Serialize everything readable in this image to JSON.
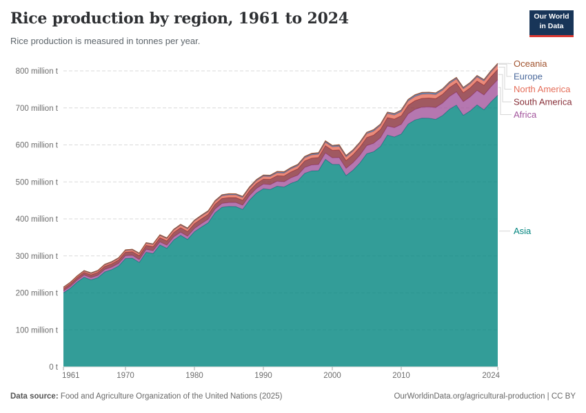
{
  "header": {
    "title": "Rice production by region, 1961 to 2024",
    "subtitle": "Rice production is measured in tonnes per year.",
    "logo_line1": "Our World",
    "logo_line2": "in Data",
    "logo_bg": "#183558",
    "logo_accent": "#dd3a33"
  },
  "footer": {
    "data_source_label": "Data source:",
    "data_source_text": " Food and Agriculture Organization of the United Nations (2025)",
    "right_text": "OurWorldinData.org/agricultural-production | CC BY"
  },
  "chart_data": {
    "type": "area",
    "stacked": true,
    "title": "Rice production by region, 1961 to 2024",
    "subtitle": "Rice production is measured in tonnes per year.",
    "unit": "million tonnes",
    "legend_position": "right",
    "grid": true,
    "ylim": [
      0,
      800
    ],
    "x_ticks": [
      1961,
      1970,
      1980,
      1990,
      2000,
      2010,
      2024
    ],
    "y_ticks": [
      {
        "value": 0,
        "label": "0 t"
      },
      {
        "value": 100,
        "label": "100 million t"
      },
      {
        "value": 200,
        "label": "200 million t"
      },
      {
        "value": 300,
        "label": "300 million t"
      },
      {
        "value": 400,
        "label": "400 million t"
      },
      {
        "value": 500,
        "label": "500 million t"
      },
      {
        "value": 600,
        "label": "600 million t"
      },
      {
        "value": 700,
        "label": "700 million t"
      },
      {
        "value": 800,
        "label": "800 million t"
      }
    ],
    "x": [
      1961,
      1962,
      1963,
      1964,
      1965,
      1966,
      1967,
      1968,
      1969,
      1970,
      1971,
      1972,
      1973,
      1974,
      1975,
      1976,
      1977,
      1978,
      1979,
      1980,
      1981,
      1982,
      1983,
      1984,
      1985,
      1986,
      1987,
      1988,
      1989,
      1990,
      1991,
      1992,
      1993,
      1994,
      1995,
      1996,
      1997,
      1998,
      1999,
      2000,
      2001,
      2002,
      2003,
      2004,
      2005,
      2006,
      2007,
      2008,
      2009,
      2010,
      2011,
      2012,
      2013,
      2014,
      2015,
      2016,
      2017,
      2018,
      2019,
      2020,
      2021,
      2022,
      2023,
      2024
    ],
    "series": [
      {
        "id": "asia",
        "label": "Asia",
        "color": "#00847E",
        "values": [
          200.1,
          212.4,
          229.2,
          242.4,
          235.1,
          241.1,
          256.7,
          262.8,
          272.6,
          293.1,
          294.0,
          282.5,
          310.0,
          306.2,
          329.6,
          320.6,
          343.1,
          355.7,
          344.6,
          365.4,
          377.9,
          389.6,
          416.6,
          431.7,
          433.7,
          433.3,
          425.7,
          451.0,
          469.9,
          481.5,
          479.6,
          488.4,
          486.1,
          496.2,
          503.0,
          523.3,
          529.8,
          530.4,
          561.1,
          547.5,
          547.2,
          517.3,
          531.7,
          551.1,
          576.2,
          581.6,
          596.0,
          626.6,
          621.4,
          629.4,
          656.4,
          667.6,
          672.3,
          672.0,
          669.1,
          679.7,
          696.5,
          707.5,
          679.8,
          691.9,
          708.1,
          694.9,
          715.9,
          734.1
        ]
      },
      {
        "id": "africa",
        "label": "Africa",
        "color": "#A2559C",
        "values": [
          4.9,
          5.2,
          5.4,
          5.7,
          6.0,
          6.2,
          6.5,
          6.8,
          7.0,
          7.3,
          7.4,
          7.6,
          7.7,
          7.8,
          8.0,
          8.1,
          8.2,
          8.3,
          8.5,
          8.6,
          9.0,
          9.4,
          9.8,
          10.2,
          10.6,
          11.0,
          11.4,
          11.8,
          12.2,
          12.6,
          13.1,
          13.6,
          14.1,
          14.6,
          15.1,
          15.6,
          16.0,
          16.5,
          17.0,
          17.5,
          18.4,
          19.2,
          20.1,
          20.9,
          21.8,
          22.6,
          23.5,
          24.3,
          25.2,
          26.0,
          27.2,
          28.4,
          29.6,
          30.8,
          32.0,
          33.2,
          34.4,
          35.6,
          36.8,
          38.0,
          39.0,
          40.0,
          41.0,
          42.0
        ]
      },
      {
        "id": "south_america",
        "label": "South America",
        "color": "#883039",
        "values": [
          6.1,
          6.5,
          6.9,
          7.3,
          7.7,
          8.2,
          8.6,
          9.0,
          9.4,
          9.8,
          10.1,
          10.5,
          10.8,
          11.1,
          11.5,
          11.8,
          12.1,
          12.4,
          12.8,
          13.1,
          13.1,
          13.2,
          13.2,
          13.3,
          13.3,
          13.3,
          13.4,
          13.4,
          13.5,
          13.5,
          14.2,
          14.9,
          15.6,
          16.3,
          17.1,
          17.8,
          18.5,
          19.2,
          19.9,
          20.6,
          20.9,
          21.2,
          21.5,
          21.8,
          22.1,
          22.3,
          22.6,
          22.9,
          23.2,
          23.5,
          23.6,
          23.7,
          23.8,
          23.9,
          24.0,
          24.1,
          24.2,
          24.3,
          24.4,
          24.5,
          25.4,
          26.2,
          27.1,
          28.0
        ]
      },
      {
        "id": "north_america",
        "label": "North America",
        "color": "#E56E5A",
        "values": [
          2.5,
          2.7,
          2.8,
          3.0,
          3.2,
          3.3,
          3.5,
          3.7,
          3.8,
          4.0,
          4.3,
          4.6,
          4.9,
          5.2,
          5.5,
          5.7,
          6.0,
          6.3,
          6.6,
          6.9,
          6.9,
          6.9,
          7.0,
          7.0,
          7.0,
          7.0,
          7.0,
          7.0,
          7.1,
          7.1,
          7.3,
          7.4,
          7.6,
          7.8,
          8.0,
          8.1,
          8.3,
          8.5,
          8.6,
          8.8,
          9.0,
          9.2,
          9.5,
          9.7,
          9.9,
          10.1,
          10.3,
          10.6,
          10.8,
          11.0,
          10.9,
          10.8,
          10.8,
          10.7,
          10.6,
          10.5,
          10.4,
          10.4,
          10.3,
          10.2,
          10.7,
          11.1,
          11.6,
          12.0
        ]
      },
      {
        "id": "europe",
        "label": "Europe",
        "color": "#4C6A9C",
        "values": [
          1.8,
          1.8,
          1.8,
          1.8,
          1.9,
          1.9,
          1.9,
          1.9,
          1.9,
          1.9,
          1.9,
          2.0,
          2.0,
          2.0,
          2.1,
          2.1,
          2.1,
          2.1,
          2.2,
          2.2,
          2.3,
          2.3,
          2.4,
          2.5,
          2.6,
          2.6,
          2.7,
          2.8,
          2.8,
          2.9,
          2.9,
          3.0,
          3.0,
          3.0,
          3.1,
          3.1,
          3.1,
          3.1,
          3.2,
          3.2,
          3.3,
          3.4,
          3.5,
          3.6,
          3.8,
          3.9,
          4.0,
          4.1,
          4.2,
          4.3,
          4.3,
          4.2,
          4.2,
          4.2,
          4.2,
          4.1,
          4.1,
          4.1,
          4.0,
          4.0,
          4.0,
          3.9,
          3.9,
          3.8
        ]
      },
      {
        "id": "oceania",
        "label": "Oceania",
        "color": "#A0522D",
        "values": [
          0.2,
          0.2,
          0.2,
          0.2,
          0.2,
          0.2,
          0.3,
          0.3,
          0.3,
          0.3,
          0.3,
          0.3,
          0.4,
          0.4,
          0.5,
          0.5,
          0.6,
          0.6,
          0.7,
          0.7,
          0.7,
          0.7,
          0.6,
          0.7,
          0.8,
          0.7,
          0.8,
          0.8,
          0.9,
          1.0,
          1.0,
          1.1,
          1.2,
          1.1,
          1.2,
          1.0,
          1.4,
          1.4,
          1.4,
          1.1,
          1.8,
          1.3,
          0.4,
          0.6,
          0.3,
          1.0,
          0.2,
          0.1,
          0.1,
          0.2,
          0.7,
          0.9,
          1.2,
          0.8,
          0.7,
          0.3,
          0.8,
          0.6,
          0.1,
          0.1,
          0.5,
          0.4,
          0.5,
          0.6
        ]
      }
    ],
    "legend_order_top_to_bottom": [
      "oceania",
      "europe",
      "north_america",
      "south_america",
      "africa",
      "asia"
    ]
  },
  "style": {
    "gridline_color": "#d9d9d9",
    "axis_tick_color": "#a5a5a5",
    "axis_label_color": "#6c6c6c",
    "connector_color": "#d6d6d6",
    "fill_opacity": 0.8
  }
}
